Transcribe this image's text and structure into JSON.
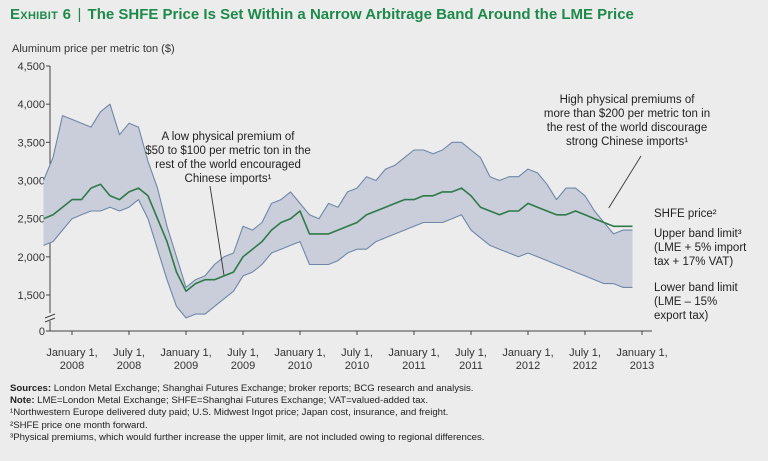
{
  "title": {
    "exhibit": "Exhibit 6",
    "separator": "|",
    "text": "The SHFE Price Is Set Within a Narrow Arbitrage Band Around the LME Price"
  },
  "chart_data": {
    "type": "line",
    "ylabel": "Aluminum price per metric ton ($)",
    "yticks": [
      "0",
      "1,500",
      "2,000",
      "2,500",
      "3,000",
      "3,500",
      "4,000",
      "4,500"
    ],
    "ytick_values": [
      0,
      1500,
      2000,
      2500,
      3000,
      3500,
      4000,
      4500
    ],
    "ylim": [
      0,
      4500
    ],
    "axis_break": true,
    "xticks": [
      {
        "line1": "January 1,",
        "line2": "2008",
        "month": 0
      },
      {
        "line1": "July 1,",
        "line2": "2008",
        "month": 6
      },
      {
        "line1": "January 1,",
        "line2": "2009",
        "month": 12
      },
      {
        "line1": "July 1,",
        "line2": "2009",
        "month": 18
      },
      {
        "line1": "January 1,",
        "line2": "2010",
        "month": 24
      },
      {
        "line1": "July 1,",
        "line2": "2010",
        "month": 30
      },
      {
        "line1": "January 1,",
        "line2": "2011",
        "month": 36
      },
      {
        "line1": "July 1,",
        "line2": "2011",
        "month": 42
      },
      {
        "line1": "January 1,",
        "line2": "2012",
        "month": 48
      },
      {
        "line1": "July 1,",
        "line2": "2012",
        "month": 54
      },
      {
        "line1": "January 1,",
        "line2": "2013",
        "month": 60
      }
    ],
    "x_months": [
      -3,
      -2,
      -1,
      0,
      1,
      2,
      3,
      4,
      5,
      6,
      7,
      8,
      9,
      10,
      11,
      12,
      13,
      14,
      15,
      16,
      17,
      18,
      19,
      20,
      21,
      22,
      23,
      24,
      25,
      26,
      27,
      28,
      29,
      30,
      31,
      32,
      33,
      34,
      35,
      36,
      37,
      38,
      39,
      40,
      41,
      42,
      43,
      44,
      45,
      46,
      47,
      48,
      49,
      50,
      51,
      52,
      53,
      54,
      55,
      56,
      57,
      58,
      59
    ],
    "series": [
      {
        "name": "Upper band limit",
        "color": "#6f87a8",
        "values": [
          3000,
          3300,
          3850,
          3800,
          3750,
          3700,
          3900,
          4000,
          3600,
          3750,
          3700,
          3250,
          2900,
          2400,
          2000,
          1600,
          1700,
          1750,
          1900,
          2000,
          2050,
          2400,
          2350,
          2450,
          2700,
          2750,
          2850,
          2700,
          2550,
          2500,
          2700,
          2650,
          2850,
          2900,
          3050,
          3000,
          3150,
          3200,
          3300,
          3400,
          3400,
          3350,
          3400,
          3500,
          3500,
          3400,
          3300,
          3050,
          3000,
          3050,
          3050,
          3150,
          3100,
          2950,
          2750,
          2900,
          2900,
          2800,
          2600,
          2450,
          2300,
          2350,
          2350
        ]
      },
      {
        "name": "SHFE price",
        "color": "#2e7a49",
        "values": [
          2500,
          2550,
          2650,
          2750,
          2750,
          2900,
          2950,
          2800,
          2750,
          2850,
          2900,
          2800,
          2500,
          2200,
          1800,
          1550,
          1650,
          1700,
          1700,
          1750,
          1800,
          2000,
          2100,
          2200,
          2350,
          2450,
          2500,
          2600,
          2300,
          2300,
          2300,
          2350,
          2400,
          2450,
          2550,
          2600,
          2650,
          2700,
          2750,
          2750,
          2800,
          2800,
          2850,
          2850,
          2900,
          2800,
          2650,
          2600,
          2550,
          2600,
          2600,
          2700,
          2650,
          2600,
          2550,
          2550,
          2600,
          2550,
          2500,
          2450,
          2400,
          2400,
          2400
        ]
      },
      {
        "name": "Lower band limit",
        "color": "#6f87a8",
        "values": [
          2150,
          2200,
          2350,
          2500,
          2550,
          2600,
          2600,
          2650,
          2600,
          2650,
          2750,
          2500,
          2100,
          1700,
          1350,
          1200,
          1250,
          1250,
          1350,
          1450,
          1550,
          1750,
          1800,
          1900,
          2050,
          2100,
          2150,
          2200,
          1900,
          1900,
          1900,
          1950,
          2050,
          2100,
          2100,
          2200,
          2250,
          2300,
          2350,
          2400,
          2450,
          2450,
          2450,
          2500,
          2550,
          2350,
          2250,
          2150,
          2100,
          2050,
          2000,
          2050,
          2000,
          1950,
          1900,
          1850,
          1800,
          1750,
          1700,
          1650,
          1650,
          1600,
          1600
        ]
      }
    ],
    "band_fill": "#c9ceda",
    "annotations": {
      "low_premium": [
        "A low physical premium of",
        "$50 to $100 per metric ton in the",
        "rest of the world encouraged",
        "Chinese imports¹"
      ],
      "high_premium": [
        "High physical premiums of",
        "more than $200 per metric ton in",
        "the rest of the world discourage",
        "strong Chinese imports¹"
      ]
    },
    "legend": {
      "shfe": [
        "SHFE price²"
      ],
      "upper": [
        "Upper band limit³",
        "(LME + 5% import",
        "tax + 17% VAT)"
      ],
      "lower": [
        "Lower band limit",
        "(LME – 15%",
        "export tax)"
      ]
    }
  },
  "notes": {
    "sources_label": "Sources:",
    "sources": " London Metal Exchange; Shanghai Futures Exchange; broker reports; BCG research and analysis.",
    "note_label": "Note:",
    "note": " LME=London Metal Exchange; SHFE=Shanghai Futures Exchange; VAT=valued-added tax.",
    "fn1": "¹Northwestern Europe delivered duty paid; U.S. Midwest Ingot price; Japan cost, insurance, and freight.",
    "fn2": "²SHFE price one month forward.",
    "fn3": "³Physical premiums, which would further increase the upper limit, are not included owing to regional differences."
  }
}
